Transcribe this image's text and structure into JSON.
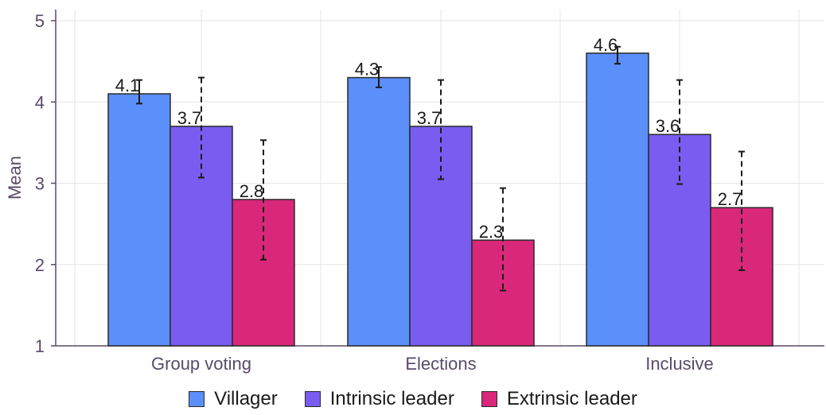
{
  "chart_data": {
    "type": "bar",
    "title": "",
    "xlabel": "",
    "ylabel": "Mean",
    "ylim": [
      1,
      5
    ],
    "yticks": [
      1,
      2,
      3,
      4,
      5
    ],
    "grid": true,
    "legend_position": "bottom",
    "categories": [
      "Group voting",
      "Elections",
      "Inclusive"
    ],
    "series": [
      {
        "name": "Villager",
        "color": "#5b8ff9",
        "values": [
          4.1,
          4.3,
          4.6
        ],
        "labels": [
          "4.1",
          "4.3",
          "4.6"
        ],
        "error_low": [
          3.98,
          4.18,
          4.47
        ],
        "error_high": [
          4.27,
          4.43,
          4.68
        ]
      },
      {
        "name": "Intrinsic leader",
        "color": "#7b5cf0",
        "values": [
          3.7,
          3.7,
          3.6
        ],
        "labels": [
          "3.7",
          "3.7",
          "3.6"
        ],
        "error_low": [
          3.07,
          3.05,
          2.99
        ],
        "error_high": [
          4.3,
          4.27,
          4.27
        ]
      },
      {
        "name": "Extrinsic leader",
        "color": "#d9277a",
        "values": [
          2.8,
          2.3,
          2.7
        ],
        "labels": [
          "2.8",
          "2.3",
          "2.7"
        ],
        "error_low": [
          2.06,
          1.68,
          1.93
        ],
        "error_high": [
          3.53,
          2.94,
          3.39
        ]
      }
    ]
  }
}
